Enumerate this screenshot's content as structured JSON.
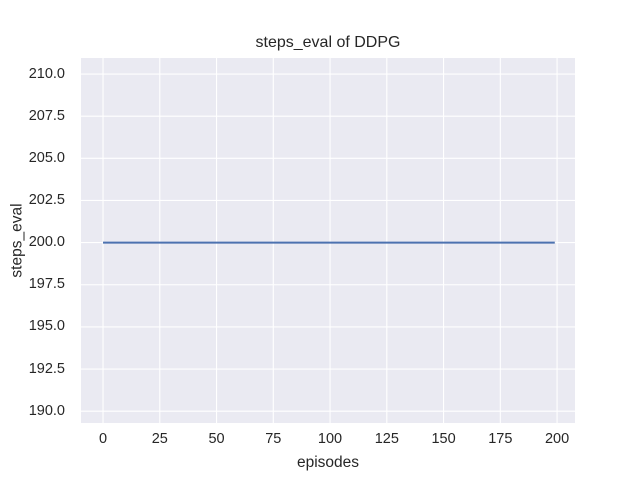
{
  "chart_data": {
    "type": "line",
    "title": "steps_eval of DDPG",
    "xlabel": "episodes",
    "ylabel": "steps_eval",
    "x_ticks": [
      0,
      25,
      50,
      75,
      100,
      125,
      150,
      175,
      200
    ],
    "x_tick_labels": [
      "0",
      "25",
      "50",
      "75",
      "100",
      "125",
      "150",
      "175",
      "200"
    ],
    "y_ticks": [
      190.0,
      192.5,
      195.0,
      197.5,
      200.0,
      202.5,
      205.0,
      207.5,
      210.0
    ],
    "y_tick_labels": [
      "190.0",
      "192.5",
      "195.0",
      "197.5",
      "200.0",
      "202.5",
      "205.0",
      "207.5",
      "210.0"
    ],
    "xlim": [
      -9.7,
      207.9
    ],
    "ylim": [
      189.3,
      210.95
    ],
    "grid": true,
    "legend_position": "none",
    "series": [
      {
        "name": "steps_eval",
        "color": "#4c72b0",
        "points": [
          [
            0,
            200
          ],
          [
            199,
            200
          ]
        ]
      }
    ],
    "colors": {
      "figure_background": "#ffffff",
      "plot_background": "#eaeaf2",
      "grid": "#ffffff",
      "text": "#262626"
    }
  }
}
